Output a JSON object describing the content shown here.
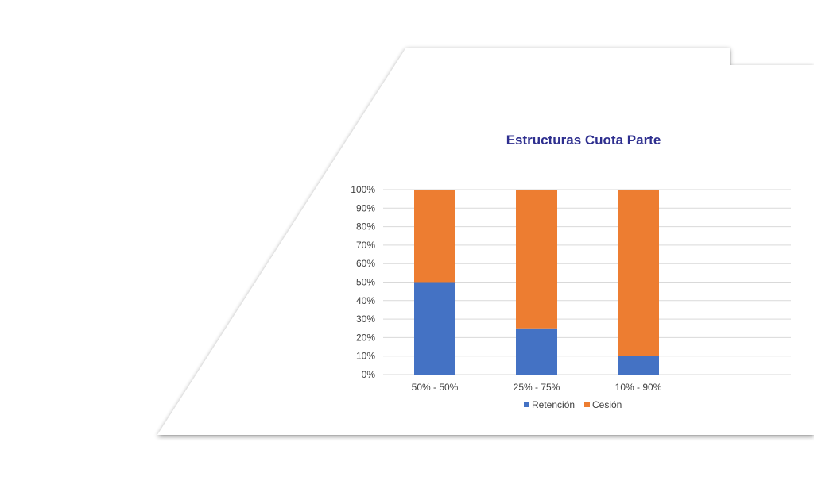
{
  "chart_data": {
    "type": "bar",
    "stacked": true,
    "title": "Estructuras Cuota Parte",
    "xlabel": "",
    "ylabel": "",
    "categories": [
      "50% - 50%",
      "25% - 75%",
      "10% - 90%"
    ],
    "series": [
      {
        "name": "Retención",
        "values": [
          50,
          25,
          10
        ],
        "color": "#4472c4"
      },
      {
        "name": "Cesión",
        "values": [
          50,
          75,
          90
        ],
        "color": "#ed7d31"
      }
    ],
    "ylim": [
      0,
      100
    ],
    "yticks": [
      "0%",
      "10%",
      "20%",
      "30%",
      "40%",
      "50%",
      "60%",
      "70%",
      "80%",
      "90%",
      "100%"
    ],
    "grid": true,
    "legend": "bottom"
  }
}
